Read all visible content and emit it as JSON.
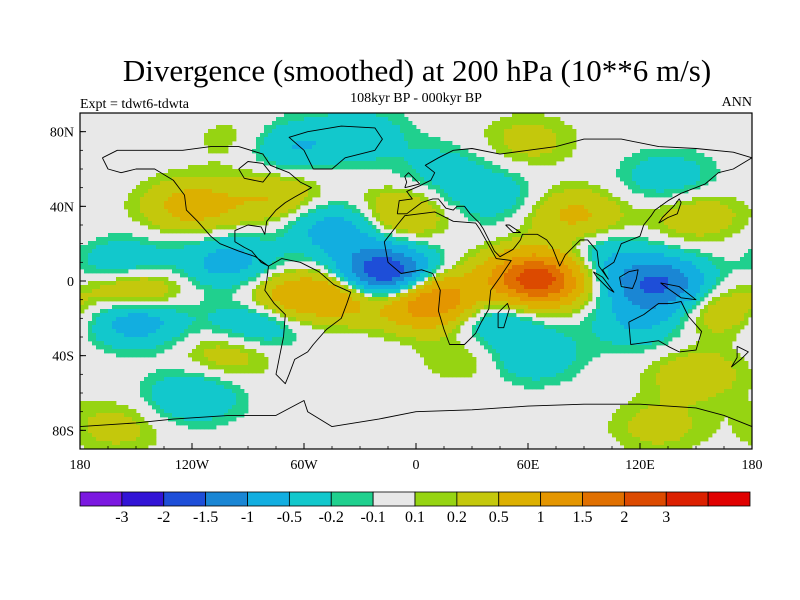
{
  "chart_data": {
    "type": "heatmap",
    "title": "Divergence (smoothed) at 200 hPa (10**6 m/s)",
    "subtitle": "108kyr BP - 000kyr BP",
    "left_label": "Expt = tdwt6-tdwta",
    "right_label": "ANN",
    "x_range": [
      -180,
      180
    ],
    "y_range": [
      -90,
      90
    ],
    "x_ticks": [
      {
        "value": -180,
        "label": "180"
      },
      {
        "value": -120,
        "label": "120W"
      },
      {
        "value": -60,
        "label": "60W"
      },
      {
        "value": 0,
        "label": "0"
      },
      {
        "value": 60,
        "label": "60E"
      },
      {
        "value": 120,
        "label": "120E"
      },
      {
        "value": 180,
        "label": "180"
      }
    ],
    "y_ticks": [
      {
        "value": 80,
        "label": "80N"
      },
      {
        "value": 40,
        "label": "40N"
      },
      {
        "value": 0,
        "label": "0"
      },
      {
        "value": -40,
        "label": "40S"
      },
      {
        "value": -80,
        "label": "80S"
      }
    ],
    "colorbar": {
      "colors": [
        "#7b18e0",
        "#3214d6",
        "#1e4ed8",
        "#1a86d4",
        "#12aee0",
        "#12c8cc",
        "#20d08e",
        "#e8e8e8",
        "#96d412",
        "#c4c80c",
        "#dcb000",
        "#e49600",
        "#e07000",
        "#dc4a00",
        "#dc2000",
        "#e00000"
      ],
      "labels": [
        "-3",
        "-2",
        "-1.5",
        "-1",
        "-0.5",
        "-0.2",
        "-0.1",
        "0.1",
        "0.2",
        "0.5",
        "1",
        "1.5",
        "2",
        "3"
      ],
      "levels": [
        -3,
        -2,
        -1.5,
        -1,
        -0.5,
        -0.2,
        -0.1,
        0.1,
        0.2,
        0.5,
        1,
        1.5,
        2,
        3
      ]
    },
    "anomaly_centers": [
      {
        "lon": -18,
        "lat": 3,
        "value": -2.6
      },
      {
        "lon": -42,
        "lat": 28,
        "value": -0.8
      },
      {
        "lon": -100,
        "lat": 10,
        "value": -0.7
      },
      {
        "lon": -155,
        "lat": 8,
        "value": -0.6
      },
      {
        "lon": -150,
        "lat": -20,
        "value": -0.9
      },
      {
        "lon": -85,
        "lat": -22,
        "value": -0.7
      },
      {
        "lon": -70,
        "lat": 72,
        "value": -0.6
      },
      {
        "lon": -30,
        "lat": 78,
        "value": -0.4
      },
      {
        "lon": 40,
        "lat": -20,
        "value": -0.6
      },
      {
        "lon": 60,
        "lat": -40,
        "value": -0.5
      },
      {
        "lon": 120,
        "lat": -22,
        "value": -0.5
      },
      {
        "lon": 130,
        "lat": -2,
        "value": -1.6
      },
      {
        "lon": 100,
        "lat": 12,
        "value": -0.5
      },
      {
        "lon": 40,
        "lat": 45,
        "value": -0.4
      },
      {
        "lon": 135,
        "lat": 55,
        "value": -0.4
      },
      {
        "lon": 15,
        "lat": 60,
        "value": -0.3
      },
      {
        "lon": -120,
        "lat": -62,
        "value": -0.5
      },
      {
        "lon": 65,
        "lat": 1,
        "value": 2.4
      },
      {
        "lon": 8,
        "lat": -10,
        "value": 1.8
      },
      {
        "lon": -35,
        "lat": -5,
        "value": 1.2
      },
      {
        "lon": -70,
        "lat": -10,
        "value": 0.8
      },
      {
        "lon": -150,
        "lat": -5,
        "value": 0.9
      },
      {
        "lon": -120,
        "lat": 40,
        "value": 0.7
      },
      {
        "lon": -75,
        "lat": 45,
        "value": 0.5
      },
      {
        "lon": -10,
        "lat": 35,
        "value": 0.6
      },
      {
        "lon": 85,
        "lat": 35,
        "value": 0.6
      },
      {
        "lon": 150,
        "lat": 35,
        "value": 0.4
      },
      {
        "lon": 160,
        "lat": -15,
        "value": 0.5
      },
      {
        "lon": 150,
        "lat": -50,
        "value": 0.4
      },
      {
        "lon": 30,
        "lat": -40,
        "value": 0.3
      },
      {
        "lon": -160,
        "lat": -78,
        "value": 0.3
      },
      {
        "lon": 130,
        "lat": -78,
        "value": 0.3
      },
      {
        "lon": -90,
        "lat": 75,
        "value": 0.3
      },
      {
        "lon": 60,
        "lat": 75,
        "value": 0.3
      },
      {
        "lon": -100,
        "lat": -38,
        "value": 0.4
      }
    ]
  }
}
